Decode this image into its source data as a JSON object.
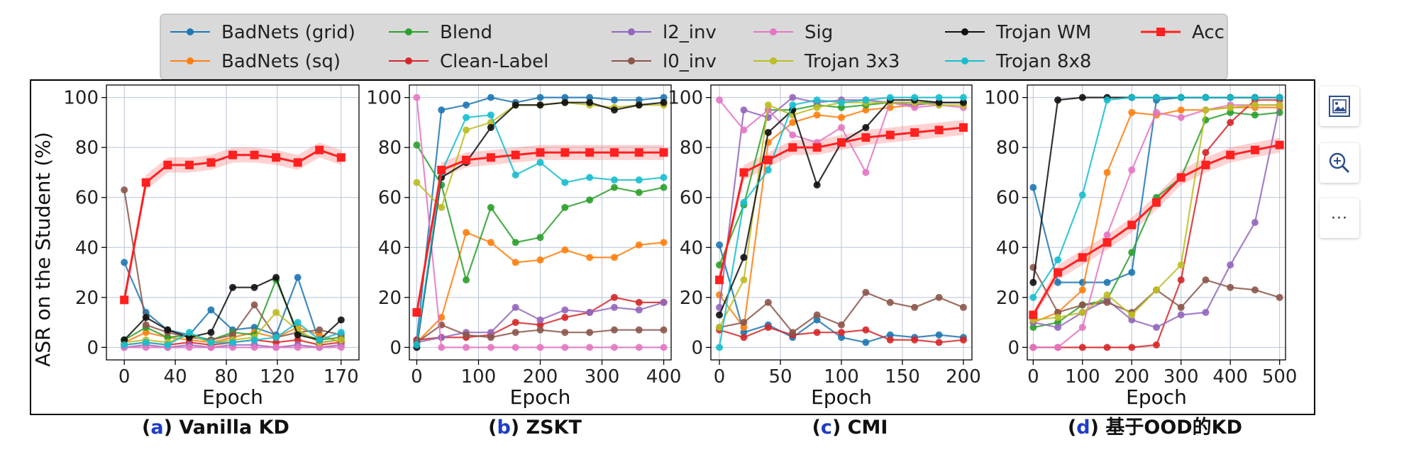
{
  "chart_data": [
    {
      "type": "line",
      "panel": "a",
      "caption": "Vanilla KD",
      "xlabel": "Epoch",
      "ylabel": "ASR on the Student (%)",
      "xlim": [
        -14,
        184
      ],
      "ylim": [
        -5,
        105
      ],
      "xticks": [
        0,
        40,
        80,
        120,
        170
      ],
      "yticks": [
        0,
        20,
        40,
        60,
        80,
        100
      ],
      "grid": true,
      "x": [
        0,
        17,
        34,
        51,
        68,
        85,
        102,
        119,
        136,
        153,
        170
      ],
      "series": [
        {
          "name": "BadNets (grid)",
          "values": [
            34,
            14,
            7,
            5,
            15,
            7,
            8,
            5,
            28,
            2,
            3
          ]
        },
        {
          "name": "BadNets (sq)",
          "values": [
            2,
            6,
            4,
            3,
            2,
            4,
            6,
            4,
            8,
            5,
            2
          ]
        },
        {
          "name": "Blend",
          "values": [
            3,
            8,
            4,
            5,
            3,
            6,
            5,
            27,
            6,
            3,
            4
          ]
        },
        {
          "name": "Clean-Label",
          "values": [
            1,
            2,
            1,
            2,
            1,
            2,
            3,
            2,
            3,
            1,
            2
          ]
        },
        {
          "name": "l2_inv",
          "values": [
            0,
            1,
            0,
            1,
            0,
            1,
            1,
            0,
            1,
            0,
            1
          ]
        },
        {
          "name": "l0_inv",
          "values": [
            63,
            9,
            6,
            4,
            3,
            5,
            17,
            4,
            6,
            7,
            5
          ]
        },
        {
          "name": "Sig",
          "values": [
            0,
            0,
            0,
            0,
            0,
            0,
            0,
            0,
            0,
            0,
            0
          ]
        },
        {
          "name": "Trojan 3x3",
          "values": [
            2,
            3,
            2,
            5,
            2,
            3,
            4,
            14,
            7,
            2,
            3
          ]
        },
        {
          "name": "Trojan WM",
          "values": [
            3,
            12,
            7,
            4,
            6,
            24,
            24,
            28,
            5,
            3,
            11
          ]
        },
        {
          "name": "Trojan 8x8",
          "values": [
            1,
            2,
            1,
            6,
            2,
            2,
            3,
            4,
            10,
            3,
            6
          ]
        },
        {
          "name": "Acc",
          "values": [
            19,
            66,
            73,
            73,
            74,
            77,
            77,
            76,
            74,
            79,
            76
          ]
        }
      ]
    },
    {
      "type": "line",
      "panel": "b",
      "caption": "ZSKT",
      "xlabel": "Epoch",
      "ylabel": "",
      "xlim": [
        -12,
        412
      ],
      "ylim": [
        -5,
        105
      ],
      "xticks": [
        0,
        100,
        200,
        300,
        400
      ],
      "yticks": [
        0,
        20,
        40,
        60,
        80,
        100
      ],
      "grid": true,
      "x": [
        0,
        40,
        80,
        120,
        160,
        200,
        240,
        280,
        320,
        360,
        400
      ],
      "series": [
        {
          "name": "BadNets (grid)",
          "values": [
            3,
            95,
            97,
            100,
            98,
            100,
            100,
            100,
            99,
            99,
            100
          ]
        },
        {
          "name": "BadNets (sq)",
          "values": [
            2,
            12,
            46,
            42,
            34,
            35,
            39,
            36,
            36,
            41,
            42
          ]
        },
        {
          "name": "Blend",
          "values": [
            81,
            65,
            27,
            56,
            42,
            44,
            56,
            59,
            64,
            62,
            64
          ]
        },
        {
          "name": "Clean-Label",
          "values": [
            3,
            4,
            4,
            5,
            10,
            9,
            12,
            14,
            20,
            18,
            18
          ]
        },
        {
          "name": "l2_inv",
          "values": [
            2,
            4,
            6,
            6,
            16,
            11,
            15,
            14,
            16,
            15,
            18
          ]
        },
        {
          "name": "l0_inv",
          "values": [
            2,
            9,
            5,
            4,
            6,
            7,
            6,
            6,
            7,
            7,
            7
          ]
        },
        {
          "name": "Sig",
          "values": [
            100,
            0,
            0,
            0,
            0,
            0,
            0,
            0,
            0,
            0,
            0
          ]
        },
        {
          "name": "Trojan 3x3",
          "values": [
            66,
            56,
            87,
            90,
            97,
            97,
            98,
            97,
            96,
            97,
            97
          ]
        },
        {
          "name": "Trojan WM",
          "values": [
            0,
            68,
            74,
            88,
            97,
            97,
            98,
            98,
            95,
            97,
            98
          ]
        },
        {
          "name": "Trojan 8x8",
          "values": [
            1,
            70,
            92,
            93,
            69,
            74,
            66,
            68,
            67,
            67,
            68
          ]
        },
        {
          "name": "Acc",
          "values": [
            14,
            71,
            75,
            76,
            77,
            78,
            78,
            78,
            78,
            78,
            78
          ]
        }
      ]
    },
    {
      "type": "line",
      "panel": "c",
      "caption": "CMI",
      "xlabel": "Epoch",
      "ylabel": "",
      "xlim": [
        -7,
        207
      ],
      "ylim": [
        -5,
        105
      ],
      "xticks": [
        0,
        50,
        100,
        150,
        200
      ],
      "yticks": [
        0,
        20,
        40,
        60,
        80,
        100
      ],
      "grid": true,
      "x": [
        0,
        20,
        40,
        60,
        80,
        100,
        120,
        140,
        160,
        180,
        200
      ],
      "series": [
        {
          "name": "BadNets (grid)",
          "values": [
            41,
            6,
            9,
            4,
            11,
            4,
            2,
            5,
            4,
            5,
            4
          ]
        },
        {
          "name": "BadNets (sq)",
          "values": [
            21,
            8,
            82,
            90,
            93,
            92,
            95,
            96,
            97,
            98,
            98
          ]
        },
        {
          "name": "Blend",
          "values": [
            33,
            57,
            95,
            95,
            97,
            96,
            97,
            98,
            98,
            98,
            98
          ]
        },
        {
          "name": "Clean-Label",
          "values": [
            7,
            4,
            8,
            5,
            6,
            6,
            7,
            3,
            3,
            2,
            3
          ]
        },
        {
          "name": "l2_inv",
          "values": [
            16,
            95,
            92,
            100,
            98,
            99,
            99,
            98,
            97,
            98,
            98
          ]
        },
        {
          "name": "l0_inv",
          "values": [
            8,
            10,
            18,
            6,
            13,
            9,
            22,
            18,
            16,
            20,
            16
          ]
        },
        {
          "name": "Sig",
          "values": [
            99,
            87,
            95,
            85,
            82,
            88,
            70,
            98,
            96,
            97,
            96
          ]
        },
        {
          "name": "Trojan 3x3",
          "values": [
            8,
            27,
            97,
            93,
            96,
            98,
            98,
            98,
            98,
            97,
            97
          ]
        },
        {
          "name": "Trojan WM",
          "values": [
            13,
            36,
            86,
            95,
            65,
            82,
            88,
            99,
            99,
            98,
            98
          ]
        },
        {
          "name": "Trojan 8x8",
          "values": [
            0,
            58,
            71,
            97,
            99,
            98,
            99,
            100,
            100,
            100,
            100
          ]
        },
        {
          "name": "Acc",
          "values": [
            27,
            70,
            75,
            80,
            80,
            82,
            84,
            85,
            86,
            87,
            88
          ]
        }
      ]
    },
    {
      "type": "line",
      "panel": "d",
      "caption": "基于OOD的KD",
      "xlabel": "Epoch",
      "ylabel": "",
      "xlim": [
        -12,
        512
      ],
      "ylim": [
        -5,
        105
      ],
      "xticks": [
        0,
        100,
        200,
        300,
        400,
        500
      ],
      "yticks": [
        0,
        20,
        40,
        60,
        80,
        100
      ],
      "grid": true,
      "x": [
        0,
        50,
        100,
        150,
        200,
        250,
        300,
        350,
        400,
        450,
        500
      ],
      "series": [
        {
          "name": "BadNets (grid)",
          "values": [
            64,
            26,
            26,
            26,
            30,
            99,
            100,
            100,
            100,
            100,
            100
          ]
        },
        {
          "name": "BadNets (sq)",
          "values": [
            10,
            14,
            23,
            70,
            94,
            93,
            95,
            95,
            96,
            96,
            96
          ]
        },
        {
          "name": "Blend",
          "values": [
            8,
            10,
            17,
            19,
            38,
            60,
            68,
            91,
            94,
            93,
            94
          ]
        },
        {
          "name": "Clean-Label",
          "values": [
            0,
            0,
            0,
            0,
            0,
            1,
            27,
            78,
            90,
            99,
            99
          ]
        },
        {
          "name": "l2_inv",
          "values": [
            10,
            8,
            14,
            19,
            11,
            8,
            13,
            14,
            33,
            50,
            97
          ]
        },
        {
          "name": "l0_inv",
          "values": [
            32,
            14,
            17,
            18,
            14,
            23,
            16,
            27,
            24,
            23,
            20
          ]
        },
        {
          "name": "Sig",
          "values": [
            0,
            0,
            8,
            45,
            71,
            94,
            92,
            95,
            97,
            97,
            97
          ]
        },
        {
          "name": "Trojan 3x3",
          "values": [
            11,
            12,
            14,
            21,
            13,
            23,
            33,
            95,
            96,
            97,
            97
          ]
        },
        {
          "name": "Trojan WM",
          "values": [
            26,
            99,
            100,
            100,
            100,
            100,
            100,
            100,
            100,
            100,
            100
          ]
        },
        {
          "name": "Trojan 8x8",
          "values": [
            20,
            35,
            61,
            99,
            100,
            100,
            100,
            100,
            100,
            100,
            100
          ]
        },
        {
          "name": "Acc",
          "values": [
            13,
            30,
            36,
            42,
            49,
            58,
            68,
            73,
            77,
            79,
            81
          ]
        }
      ]
    }
  ],
  "legend": {
    "placement": "top",
    "entries": [
      {
        "name": "BadNets (grid)",
        "color": "#1f77b4"
      },
      {
        "name": "BadNets (sq)",
        "color": "#ff7f0e"
      },
      {
        "name": "Blend",
        "color": "#2ca02c"
      },
      {
        "name": "Clean-Label",
        "color": "#d62728"
      },
      {
        "name": "l2_inv",
        "color": "#9467bd"
      },
      {
        "name": "l0_inv",
        "color": "#8c564b"
      },
      {
        "name": "Sig",
        "color": "#e377c2"
      },
      {
        "name": "Trojan 3x3",
        "color": "#bcbd22"
      },
      {
        "name": "Trojan WM",
        "color": "#111111"
      },
      {
        "name": "Trojan 8x8",
        "color": "#17becf"
      },
      {
        "name": "Acc",
        "color": "#ff2020"
      }
    ]
  },
  "captions": [
    {
      "letter": "a",
      "text": "Vanilla KD"
    },
    {
      "letter": "b",
      "text": "ZSKT"
    },
    {
      "letter": "c",
      "text": "CMI"
    },
    {
      "letter": "d",
      "text": "基于OOD的KD"
    }
  ],
  "toolbar": {
    "buttons": [
      {
        "name": "image-frame-icon"
      },
      {
        "name": "zoom-in-icon"
      },
      {
        "name": "more-options-icon",
        "glyph": "···"
      }
    ]
  }
}
